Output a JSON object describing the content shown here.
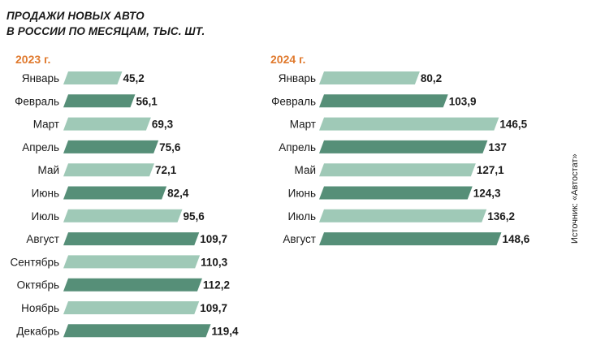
{
  "title_lines": [
    "ПРОДАЖИ НОВЫХ АВТО",
    "В РОССИИ ПО МЕСЯЦАМ, ТЫС. ШТ."
  ],
  "source": "Источник: «Автостат»",
  "colors": {
    "light": "#9fc9b7",
    "dark": "#568f78",
    "year": "#e07a2e",
    "text": "#1a1a1a"
  },
  "chart_data": [
    {
      "type": "bar",
      "title": "2023 г.",
      "categories": [
        "Январь",
        "Февраль",
        "Март",
        "Апрель",
        "Май",
        "Июнь",
        "Июль",
        "Август",
        "Сентябрь",
        "Октябрь",
        "Ноябрь",
        "Декабрь"
      ],
      "values": [
        45.2,
        56.1,
        69.3,
        75.6,
        72.1,
        82.4,
        95.6,
        109.7,
        110.3,
        112.2,
        109.7,
        119.4
      ],
      "labels": [
        "45,2",
        "56,1",
        "69,3",
        "75,6",
        "72,1",
        "82,4",
        "95,6",
        "109,7",
        "110,3",
        "112,2",
        "109,7",
        "119,4"
      ]
    },
    {
      "type": "bar",
      "title": "2024 г.",
      "categories": [
        "Январь",
        "Февраль",
        "Март",
        "Апрель",
        "Май",
        "Июнь",
        "Июль",
        "Август"
      ],
      "values": [
        80.2,
        103.9,
        146.5,
        137,
        127.1,
        124.3,
        136.2,
        148.6
      ],
      "labels": [
        "80,2",
        "103,9",
        "146,5",
        "137",
        "127,1",
        "124,3",
        "136,2",
        "148,6"
      ]
    }
  ]
}
